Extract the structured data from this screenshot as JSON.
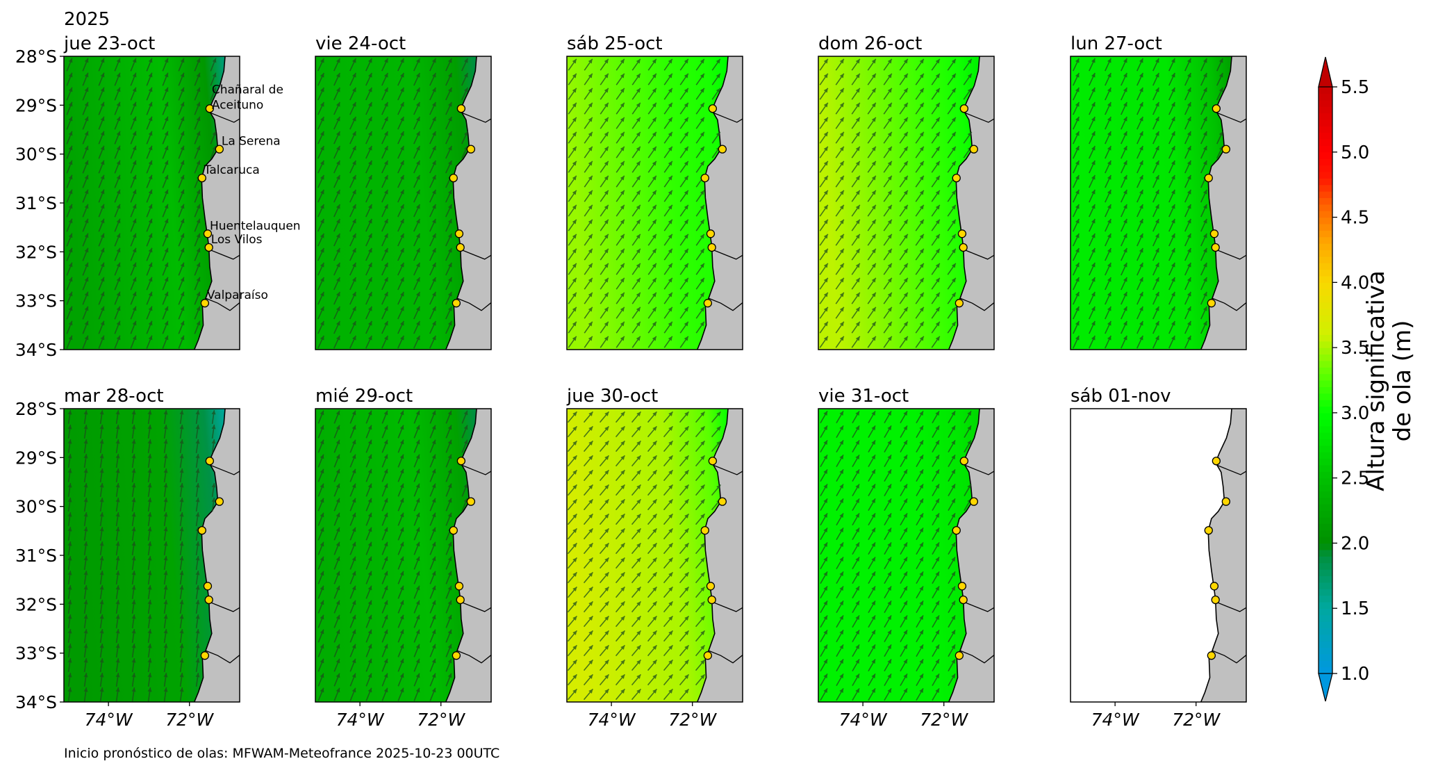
{
  "chart_data": {
    "type": "heatmap",
    "year_label": "2025",
    "footer": "Inicio pronóstico de olas: MFWAM-Meteofrance 2025-10-23 00UTC",
    "lat_range": [
      -34,
      -28
    ],
    "lon_range": [
      -75.1,
      -70.76
    ],
    "lat_ticks": [
      {
        "v": -28,
        "label": "28°S"
      },
      {
        "v": -29,
        "label": "29°S"
      },
      {
        "v": -30,
        "label": "30°S"
      },
      {
        "v": -31,
        "label": "31°S"
      },
      {
        "v": -32,
        "label": "32°S"
      },
      {
        "v": -33,
        "label": "33°S"
      },
      {
        "v": -34,
        "label": "34°S"
      }
    ],
    "lon_ticks": [
      {
        "v": -74,
        "label": "74°W"
      },
      {
        "v": -72,
        "label": "72°W"
      }
    ],
    "panels": [
      {
        "title": "jue 23-oct",
        "hs_offshore": 2.2,
        "hs_mid": 2.45,
        "hs_coast": 1.7,
        "dir_deg": 22
      },
      {
        "title": "vie 24-oct",
        "hs_offshore": 2.35,
        "hs_mid": 2.4,
        "hs_coast": 1.9,
        "dir_deg": 25
      },
      {
        "title": "sáb 25-oct",
        "hs_offshore": 3.45,
        "hs_mid": 3.15,
        "hs_coast": 3.0,
        "dir_deg": 35
      },
      {
        "title": "dom 26-oct",
        "hs_offshore": 3.55,
        "hs_mid": 3.2,
        "hs_coast": 2.9,
        "dir_deg": 35
      },
      {
        "title": "lun 27-oct",
        "hs_offshore": 2.85,
        "hs_mid": 2.8,
        "hs_coast": 2.2,
        "dir_deg": 25
      },
      {
        "title": "mar 28-oct",
        "hs_offshore": 2.1,
        "hs_mid": 2.2,
        "hs_coast": 1.55,
        "dir_deg": 8
      },
      {
        "title": "mié 29-oct",
        "hs_offshore": 2.3,
        "hs_mid": 2.45,
        "hs_coast": 1.9,
        "dir_deg": 22
      },
      {
        "title": "jue 30-oct",
        "hs_offshore": 3.65,
        "hs_mid": 3.5,
        "hs_coast": 3.05,
        "dir_deg": 40
      },
      {
        "title": "vie 31-oct",
        "hs_offshore": 2.9,
        "hs_mid": 2.9,
        "hs_coast": 2.7,
        "dir_deg": 30
      },
      {
        "title": "sáb 01-nov",
        "hs_offshore": null,
        "hs_mid": null,
        "hs_coast": null,
        "dir_deg": null
      }
    ],
    "stations": [
      {
        "name": "Chañaral de Aceituno",
        "lines": [
          "Chañaral de",
          "Aceituno"
        ],
        "lat": -29.07,
        "lon": -71.5
      },
      {
        "name": "La Serena",
        "lines": [
          "La Serena"
        ],
        "lat": -29.9,
        "lon": -71.26
      },
      {
        "name": "Talcaruca",
        "lines": [
          "Talcaruca"
        ],
        "lat": -30.49,
        "lon": -71.69
      },
      {
        "name": "Huentelauquen",
        "lines": [
          "Huentelauquen"
        ],
        "lat": -31.63,
        "lon": -71.55
      },
      {
        "name": "Los Vilos",
        "lines": [
          "Los Vilos"
        ],
        "lat": -31.91,
        "lon": -71.52
      },
      {
        "name": "Valparaíso",
        "lines": [
          "Valparaíso"
        ],
        "lat": -33.05,
        "lon": -71.62
      }
    ],
    "coastline": [
      [
        -28.0,
        -71.12
      ],
      [
        -28.3,
        -71.15
      ],
      [
        -28.6,
        -71.25
      ],
      [
        -28.9,
        -71.42
      ],
      [
        -29.1,
        -71.52
      ],
      [
        -29.3,
        -71.38
      ],
      [
        -29.6,
        -71.33
      ],
      [
        -29.9,
        -71.3
      ],
      [
        -30.1,
        -71.45
      ],
      [
        -30.25,
        -71.62
      ],
      [
        -30.5,
        -71.7
      ],
      [
        -30.9,
        -71.68
      ],
      [
        -31.3,
        -71.62
      ],
      [
        -31.65,
        -71.56
      ],
      [
        -31.9,
        -71.52
      ],
      [
        -32.3,
        -71.5
      ],
      [
        -32.6,
        -71.45
      ],
      [
        -32.95,
        -71.6
      ],
      [
        -33.1,
        -71.68
      ],
      [
        -33.5,
        -71.66
      ],
      [
        -33.8,
        -71.78
      ],
      [
        -34.0,
        -71.88
      ]
    ],
    "colorbar": {
      "label_lines": [
        "Altura significativa",
        "de ola (m)"
      ],
      "ticks": [
        "1.0",
        "1.5",
        "2.0",
        "2.5",
        "3.0",
        "3.5",
        "4.0",
        "4.5",
        "5.0",
        "5.5"
      ],
      "range": [
        1.0,
        5.5
      ],
      "stops": [
        [
          1.0,
          "#0098e0"
        ],
        [
          1.5,
          "#00a8a0"
        ],
        [
          1.9,
          "#009040"
        ],
        [
          2.0,
          "#009000"
        ],
        [
          2.5,
          "#00c000"
        ],
        [
          3.0,
          "#00ff00"
        ],
        [
          3.3,
          "#60ff00"
        ],
        [
          3.6,
          "#d0f000"
        ],
        [
          4.0,
          "#f8d800"
        ],
        [
          4.3,
          "#ffa800"
        ],
        [
          4.6,
          "#ff6000"
        ],
        [
          4.8,
          "#ff1800"
        ],
        [
          5.0,
          "#ff0000"
        ],
        [
          5.5,
          "#c80000"
        ]
      ]
    },
    "land_color": "#c0c0c0",
    "marker_color": "#ffd700"
  }
}
